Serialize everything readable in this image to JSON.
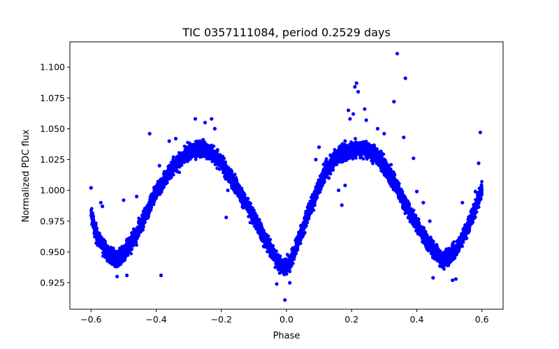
{
  "chart_data": {
    "type": "scatter",
    "title": "TIC 0357111084, period 0.2529 days",
    "xlabel": "Phase",
    "ylabel": "Normalized PDC flux",
    "xlim": [
      -0.665,
      0.665
    ],
    "ylim": [
      0.9035,
      1.1205
    ],
    "xticks": [
      -0.6,
      -0.4,
      -0.2,
      0.0,
      0.2,
      0.4,
      0.6
    ],
    "xtick_labels": [
      "−0.6",
      "−0.4",
      "−0.2",
      "0.0",
      "0.2",
      "0.4",
      "0.6"
    ],
    "yticks": [
      0.925,
      0.95,
      0.975,
      1.0,
      1.025,
      1.05,
      1.075,
      1.1
    ],
    "ytick_labels": [
      "0.925",
      "0.950",
      "0.975",
      "1.000",
      "1.025",
      "1.050",
      "1.075",
      "1.100"
    ],
    "grid": false,
    "marker_color": "#0000ff",
    "phase_range": [
      -0.6,
      0.6
    ],
    "curve_nodes": [
      [
        -0.6,
        0.981
      ],
      [
        -0.58,
        0.962
      ],
      [
        -0.55,
        0.95
      ],
      [
        -0.52,
        0.943
      ],
      [
        -0.48,
        0.955
      ],
      [
        -0.44,
        0.975
      ],
      [
        -0.4,
        0.999
      ],
      [
        -0.35,
        1.018
      ],
      [
        -0.3,
        1.031
      ],
      [
        -0.27,
        1.034
      ],
      [
        -0.24,
        1.032
      ],
      [
        -0.2,
        1.023
      ],
      [
        -0.15,
        1.001
      ],
      [
        -0.1,
        0.978
      ],
      [
        -0.06,
        0.958
      ],
      [
        -0.03,
        0.943
      ],
      [
        -0.01,
        0.937
      ],
      [
        0.01,
        0.941
      ],
      [
        0.04,
        0.962
      ],
      [
        0.08,
        0.99
      ],
      [
        0.12,
        1.016
      ],
      [
        0.16,
        1.029
      ],
      [
        0.2,
        1.033
      ],
      [
        0.24,
        1.034
      ],
      [
        0.28,
        1.028
      ],
      [
        0.32,
        1.012
      ],
      [
        0.36,
        0.991
      ],
      [
        0.4,
        0.972
      ],
      [
        0.44,
        0.955
      ],
      [
        0.48,
        0.943
      ],
      [
        0.52,
        0.951
      ],
      [
        0.56,
        0.972
      ],
      [
        0.6,
        1.0
      ]
    ],
    "points": [
      [
        -0.6,
        1.002
      ],
      [
        -0.57,
        0.99
      ],
      [
        -0.565,
        0.987
      ],
      [
        -0.5,
        0.992
      ],
      [
        -0.52,
        0.93
      ],
      [
        -0.49,
        0.931
      ],
      [
        -0.46,
        0.995
      ],
      [
        -0.42,
        1.046
      ],
      [
        -0.39,
        1.02
      ],
      [
        -0.385,
        0.931
      ],
      [
        -0.36,
        1.04
      ],
      [
        -0.34,
        1.042
      ],
      [
        -0.28,
        1.058
      ],
      [
        -0.25,
        1.055
      ],
      [
        -0.22,
        1.05
      ],
      [
        -0.23,
        1.058
      ],
      [
        -0.19,
        1.018
      ],
      [
        -0.18,
        1.0
      ],
      [
        -0.185,
        0.978
      ],
      [
        -0.12,
        0.988
      ],
      [
        -0.03,
        0.924
      ],
      [
        -0.005,
        0.911
      ],
      [
        0.01,
        0.925
      ],
      [
        0.04,
        0.96
      ],
      [
        0.09,
        1.025
      ],
      [
        0.1,
        1.035
      ],
      [
        0.11,
        1.008
      ],
      [
        0.13,
        1.01
      ],
      [
        0.16,
        1.0
      ],
      [
        0.18,
        1.004
      ],
      [
        0.18,
        1.04
      ],
      [
        0.19,
        1.065
      ],
      [
        0.195,
        1.058
      ],
      [
        0.205,
        1.062
      ],
      [
        0.21,
        1.084
      ],
      [
        0.215,
        1.087
      ],
      [
        0.22,
        1.08
      ],
      [
        0.24,
        1.066
      ],
      [
        0.245,
        1.057
      ],
      [
        0.17,
        0.988
      ],
      [
        0.28,
        1.05
      ],
      [
        0.3,
        1.046
      ],
      [
        0.33,
        1.072
      ],
      [
        0.34,
        1.111
      ],
      [
        0.365,
        1.091
      ],
      [
        0.36,
        1.043
      ],
      [
        0.39,
        1.026
      ],
      [
        0.4,
        0.999
      ],
      [
        0.42,
        0.99
      ],
      [
        0.44,
        0.975
      ],
      [
        0.45,
        0.929
      ],
      [
        0.51,
        0.927
      ],
      [
        0.52,
        0.928
      ],
      [
        0.54,
        0.99
      ],
      [
        0.58,
        0.999
      ],
      [
        0.595,
        1.047
      ],
      [
        0.59,
        1.022
      ]
    ]
  }
}
